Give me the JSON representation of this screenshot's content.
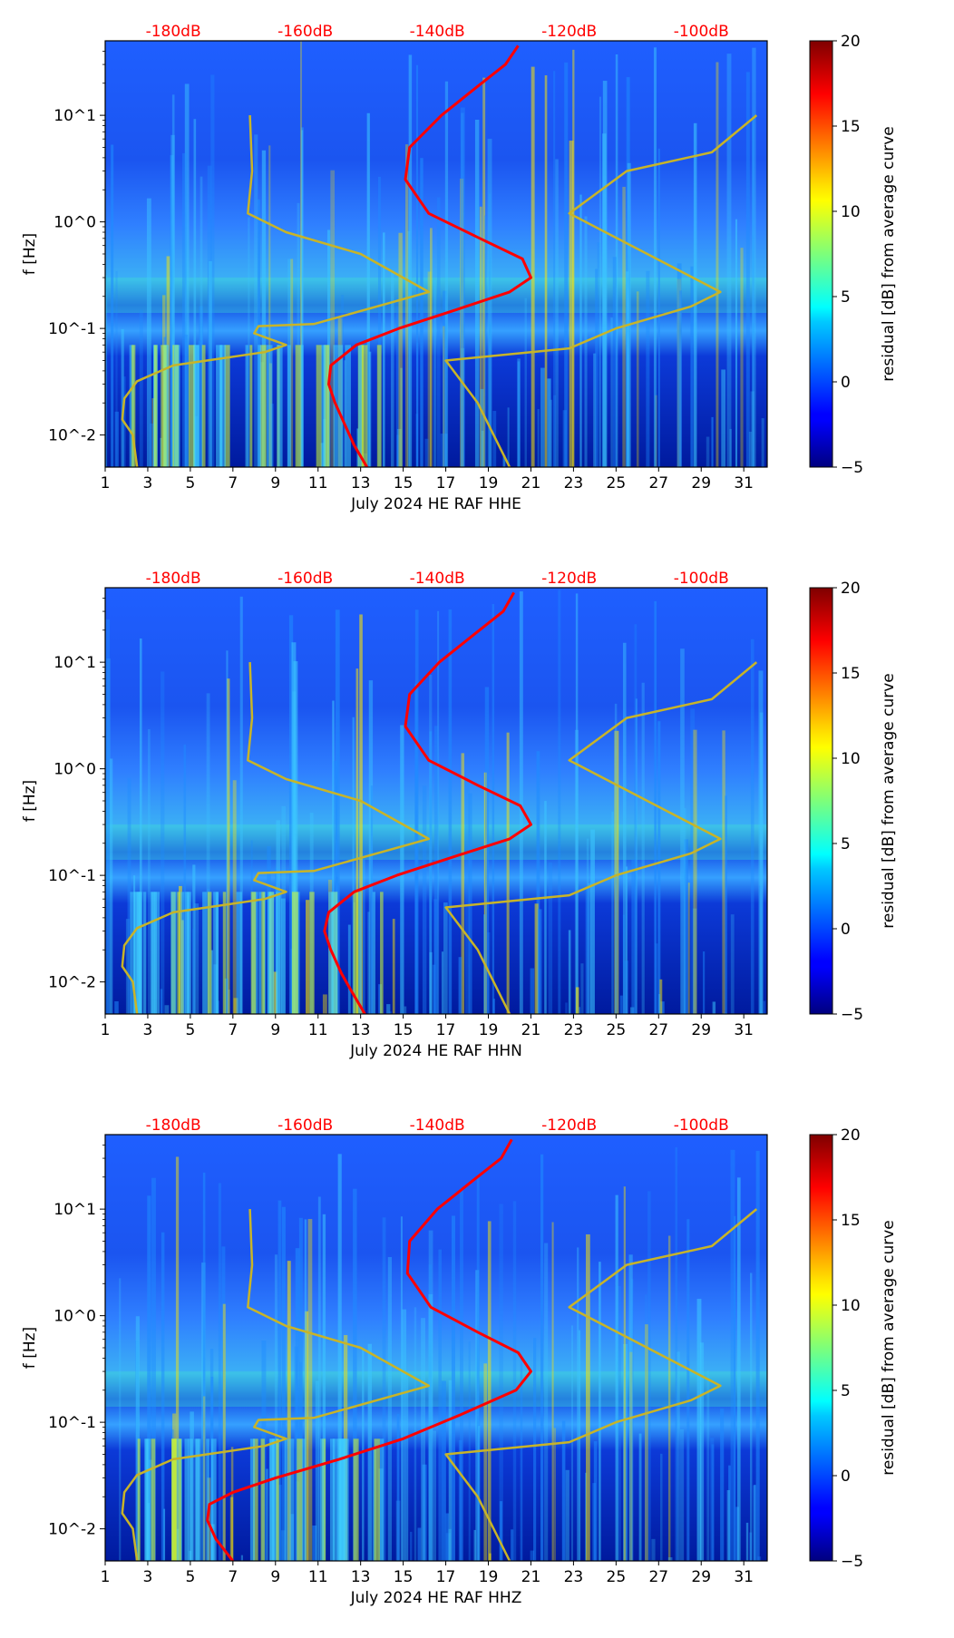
{
  "chart_data": [
    {
      "type": "heatmap",
      "title": "",
      "xlabel": "July 2024 HE RAF  HHE",
      "ylabel": "f [Hz]",
      "colorbar_label": "residual [dB] from average curve",
      "x_tick_labels": [
        "1",
        "3",
        "5",
        "7",
        "9",
        "11",
        "13",
        "15",
        "17",
        "19",
        "21",
        "23",
        "25",
        "27",
        "29",
        "31"
      ],
      "x_ticks": [
        1,
        3,
        5,
        7,
        9,
        11,
        13,
        15,
        17,
        19,
        21,
        23,
        25,
        27,
        29,
        31
      ],
      "xlim": [
        1,
        32.1
      ],
      "y_tick_labels": [
        "10^-2",
        "10^-1",
        "10^0",
        "10^1"
      ],
      "y_ticks": [
        0.01,
        0.1,
        1,
        10
      ],
      "ylim": [
        0.005,
        50
      ],
      "y_scale": "log",
      "colorbar_ticks": [
        -5,
        0,
        5,
        10,
        15,
        20
      ],
      "colorbar_tick_labels": [
        "−5",
        "0",
        "5",
        "10",
        "15",
        "20"
      ],
      "colorbar_range": [
        -5,
        20
      ],
      "colormap": "jet",
      "top_scale_labels": [
        "-180dB",
        "-160dB",
        "-140dB",
        "-120dB",
        "-100dB"
      ],
      "top_scale_positions": [
        4.2,
        10.4,
        16.6,
        22.8,
        29.0
      ],
      "series": [
        {
          "name": "mean PSD (dB, top scale)",
          "color": "#ff0000",
          "x": [
            13.3,
            12.7,
            12.3,
            11.8,
            11.5,
            11.6,
            12.8,
            14.8,
            17.5,
            20.0,
            21.0,
            20.6,
            18.6,
            16.2,
            15.1,
            15.3,
            16.8,
            18.4,
            19.8,
            20.4
          ],
          "y": [
            0.005,
            0.008,
            0.012,
            0.02,
            0.03,
            0.045,
            0.07,
            0.1,
            0.15,
            0.22,
            0.3,
            0.45,
            0.7,
            1.2,
            2.5,
            5,
            10,
            18,
            30,
            45
          ]
        },
        {
          "name": "noise model (top scale)",
          "color": "#c8b428",
          "x": [
            2.5,
            2.3,
            1.8,
            1.9,
            2.5,
            4.2,
            8.5,
            9.5,
            8.0,
            8.2,
            10.8,
            16.2,
            13.0,
            9.5,
            7.7,
            7.9,
            7.8
          ],
          "y": [
            0.005,
            0.01,
            0.014,
            0.022,
            0.032,
            0.045,
            0.06,
            0.07,
            0.09,
            0.105,
            0.11,
            0.22,
            0.5,
            0.8,
            1.2,
            3,
            10
          ]
        },
        {
          "name": "noise model (high)",
          "color": "#c8b428",
          "x": [
            20.0,
            18.5,
            17.0,
            22.8,
            25.0,
            28.5,
            29.9,
            22.8,
            25.5,
            29.5,
            31.6
          ],
          "y": [
            0.005,
            0.02,
            0.05,
            0.065,
            0.1,
            0.16,
            0.22,
            1.2,
            3,
            4.5,
            10
          ]
        }
      ]
    },
    {
      "type": "heatmap",
      "title": "",
      "xlabel": "July 2024 HE RAF  HHN",
      "ylabel": "f [Hz]",
      "colorbar_label": "residual [dB] from average curve",
      "x_tick_labels": [
        "1",
        "3",
        "5",
        "7",
        "9",
        "11",
        "13",
        "15",
        "17",
        "19",
        "21",
        "23",
        "25",
        "27",
        "29",
        "31"
      ],
      "x_ticks": [
        1,
        3,
        5,
        7,
        9,
        11,
        13,
        15,
        17,
        19,
        21,
        23,
        25,
        27,
        29,
        31
      ],
      "xlim": [
        1,
        32.1
      ],
      "y_tick_labels": [
        "10^-2",
        "10^-1",
        "10^0",
        "10^1"
      ],
      "y_ticks": [
        0.01,
        0.1,
        1,
        10
      ],
      "ylim": [
        0.005,
        50
      ],
      "y_scale": "log",
      "colorbar_ticks": [
        -5,
        0,
        5,
        10,
        15,
        20
      ],
      "colorbar_tick_labels": [
        "−5",
        "0",
        "5",
        "10",
        "15",
        "20"
      ],
      "colorbar_range": [
        -5,
        20
      ],
      "colormap": "jet",
      "top_scale_labels": [
        "-180dB",
        "-160dB",
        "-140dB",
        "-120dB",
        "-100dB"
      ],
      "top_scale_positions": [
        4.2,
        10.4,
        16.6,
        22.8,
        29.0
      ],
      "series": [
        {
          "name": "mean PSD (dB, top scale)",
          "color": "#ff0000",
          "x": [
            13.2,
            12.6,
            12.1,
            11.6,
            11.3,
            11.5,
            12.7,
            14.7,
            17.4,
            20.0,
            21.0,
            20.5,
            18.5,
            16.2,
            15.1,
            15.3,
            16.7,
            18.3,
            19.7,
            20.2
          ],
          "y": [
            0.005,
            0.008,
            0.012,
            0.02,
            0.03,
            0.045,
            0.07,
            0.1,
            0.15,
            0.22,
            0.3,
            0.45,
            0.7,
            1.2,
            2.5,
            5,
            10,
            18,
            30,
            45
          ]
        },
        {
          "name": "noise model (top scale)",
          "color": "#c8b428",
          "x": [
            2.5,
            2.3,
            1.8,
            1.9,
            2.5,
            4.2,
            8.5,
            9.5,
            8.0,
            8.2,
            10.8,
            16.2,
            13.0,
            9.5,
            7.7,
            7.9,
            7.8
          ],
          "y": [
            0.005,
            0.01,
            0.014,
            0.022,
            0.032,
            0.045,
            0.06,
            0.07,
            0.09,
            0.105,
            0.11,
            0.22,
            0.5,
            0.8,
            1.2,
            3,
            10
          ]
        },
        {
          "name": "noise model (high)",
          "color": "#c8b428",
          "x": [
            20.0,
            18.5,
            17.0,
            22.8,
            25.0,
            28.5,
            29.9,
            22.8,
            25.5,
            29.5,
            31.6
          ],
          "y": [
            0.005,
            0.02,
            0.05,
            0.065,
            0.1,
            0.16,
            0.22,
            1.2,
            3,
            4.5,
            10
          ]
        }
      ]
    },
    {
      "type": "heatmap",
      "title": "",
      "xlabel": "July 2024 HE RAF  HHZ",
      "ylabel": "f [Hz]",
      "colorbar_label": "residual [dB] from average curve",
      "x_tick_labels": [
        "1",
        "3",
        "5",
        "7",
        "9",
        "11",
        "13",
        "15",
        "17",
        "19",
        "21",
        "23",
        "25",
        "27",
        "29",
        "31"
      ],
      "x_ticks": [
        1,
        3,
        5,
        7,
        9,
        11,
        13,
        15,
        17,
        19,
        21,
        23,
        25,
        27,
        29,
        31
      ],
      "xlim": [
        1,
        32.1
      ],
      "y_tick_labels": [
        "10^-2",
        "10^-1",
        "10^0",
        "10^1"
      ],
      "y_ticks": [
        0.01,
        0.1,
        1,
        10
      ],
      "ylim": [
        0.005,
        50
      ],
      "y_scale": "log",
      "colorbar_ticks": [
        -5,
        0,
        5,
        10,
        15,
        20
      ],
      "colorbar_tick_labels": [
        "−5",
        "0",
        "5",
        "10",
        "15",
        "20"
      ],
      "colorbar_range": [
        -5,
        20
      ],
      "colormap": "jet",
      "top_scale_labels": [
        "-180dB",
        "-160dB",
        "-140dB",
        "-120dB",
        "-100dB"
      ],
      "top_scale_positions": [
        4.2,
        10.4,
        16.6,
        22.8,
        29.0
      ],
      "series": [
        {
          "name": "mean PSD (dB, top scale)",
          "color": "#ff0000",
          "x": [
            7.0,
            6.2,
            5.8,
            5.9,
            7.0,
            9.0,
            12.0,
            15.0,
            17.8,
            20.3,
            21.0,
            20.4,
            18.5,
            16.3,
            15.2,
            15.3,
            16.6,
            18.2,
            19.6,
            20.1
          ],
          "y": [
            0.005,
            0.008,
            0.012,
            0.017,
            0.022,
            0.03,
            0.045,
            0.07,
            0.12,
            0.2,
            0.3,
            0.45,
            0.7,
            1.2,
            2.5,
            5,
            10,
            18,
            30,
            45
          ]
        },
        {
          "name": "noise model (top scale)",
          "color": "#c8b428",
          "x": [
            2.5,
            2.3,
            1.8,
            1.9,
            2.5,
            4.2,
            8.5,
            9.5,
            8.0,
            8.2,
            10.8,
            16.2,
            13.0,
            9.5,
            7.7,
            7.9,
            7.8
          ],
          "y": [
            0.005,
            0.01,
            0.014,
            0.022,
            0.032,
            0.045,
            0.06,
            0.07,
            0.09,
            0.105,
            0.11,
            0.22,
            0.5,
            0.8,
            1.2,
            3,
            10
          ]
        },
        {
          "name": "noise model (high)",
          "color": "#c8b428",
          "x": [
            20.0,
            18.5,
            17.0,
            22.8,
            25.0,
            28.5,
            29.9,
            22.8,
            25.5,
            29.5,
            31.6
          ],
          "y": [
            0.005,
            0.02,
            0.05,
            0.065,
            0.1,
            0.16,
            0.22,
            1.2,
            3,
            4.5,
            10
          ]
        }
      ]
    }
  ]
}
